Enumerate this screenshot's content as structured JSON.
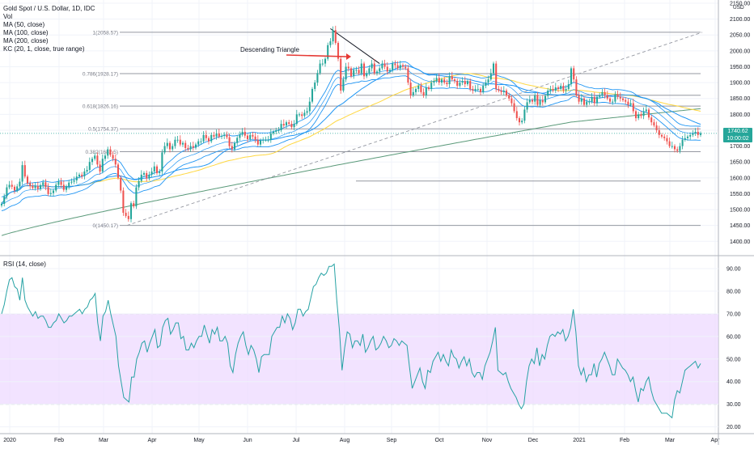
{
  "header": {
    "symbol_line": "Gold Spot / U.S. Dollar, 1D, IDC",
    "indicators": [
      "Vol",
      "MA (50, close)",
      "MA (100, close)",
      "MA (200, close)",
      "KC (20, 1, close, true range)"
    ]
  },
  "annotation": {
    "text": "Descending Triangle"
  },
  "price_tag": {
    "price": "1740.62",
    "countdown": "10:00:02"
  },
  "colors": {
    "up": "#26a69a",
    "down": "#ef5350",
    "ma50": "#2196f3",
    "ma100": "#ffd740",
    "ma200": "#5b9a7a",
    "kc": "#2196f3",
    "rsi": "#26a2a4",
    "rsi_band": "#ecd7ff",
    "grid": "#f0f3fa",
    "fib": "#9598a1"
  },
  "rsi_panel": {
    "title": "RSI (14, close)"
  },
  "chart_data": [
    {
      "type": "line",
      "subtype": "candlestick",
      "title": "Gold Spot / U.S. Dollar, 1D, IDC",
      "y_unit": "USD",
      "yticks": [
        1400,
        1450,
        1500,
        1550,
        1600,
        1650,
        1700,
        1750,
        1800,
        1850,
        1900,
        1950,
        2000,
        2050,
        2100,
        2150
      ],
      "ylim": [
        1360,
        2150
      ],
      "x_labels": [
        "2020",
        "Feb",
        "Mar",
        "Apr",
        "May",
        "Jun",
        "Jul",
        "Aug",
        "Sep",
        "Oct",
        "Nov",
        "Dec",
        "2021",
        "Feb",
        "Mar",
        "Apr"
      ],
      "fib_levels": [
        {
          "label": "1(2058.57)",
          "value": 2058.57
        },
        {
          "label": "0.786(1928.17)",
          "value": 1928.17
        },
        {
          "label": "0.618(1826.16)",
          "value": 1826.16
        },
        {
          "label": "0.5(1754.37)",
          "value": 1754.37
        },
        {
          "label": "0.382(1682.5)",
          "value": 1682.5
        },
        {
          "label": "0(1450.17)",
          "value": 1450.17
        }
      ],
      "extra_levels": [
        1590,
        1860
      ],
      "close": [
        1518,
        1542,
        1570,
        1578,
        1572,
        1560,
        1573,
        1588,
        1640,
        1604,
        1583,
        1574,
        1568,
        1574,
        1565,
        1577,
        1586,
        1571,
        1549,
        1552,
        1560,
        1578,
        1588,
        1578,
        1562,
        1573,
        1585,
        1588,
        1592,
        1604,
        1610,
        1605,
        1620,
        1625,
        1650,
        1660,
        1670,
        1642,
        1620,
        1660,
        1670,
        1690,
        1672,
        1660,
        1642,
        1600,
        1560,
        1490,
        1480,
        1470,
        1520,
        1510,
        1570,
        1590,
        1610,
        1615,
        1598,
        1610,
        1620,
        1636,
        1615,
        1620,
        1680,
        1700,
        1710,
        1690,
        1700,
        1720,
        1720,
        1705,
        1710,
        1694,
        1690,
        1700,
        1695,
        1705,
        1715,
        1715,
        1735,
        1725,
        1715,
        1735,
        1730,
        1740,
        1730,
        1732,
        1736,
        1728,
        1700,
        1690,
        1710,
        1726,
        1736,
        1745,
        1733,
        1722,
        1735,
        1730,
        1720,
        1705,
        1718,
        1720,
        1720,
        1720,
        1740,
        1745,
        1750,
        1750,
        1770,
        1765,
        1775,
        1770,
        1760,
        1770,
        1800,
        1800,
        1795,
        1805,
        1810,
        1840,
        1880,
        1900,
        1930,
        1960,
        1960,
        1975,
        2018,
        2030,
        2065,
        2025,
        1975,
        1875,
        1910,
        1950,
        1945,
        1920,
        1940,
        1940,
        1930,
        1960,
        1920,
        1930,
        1945,
        1960,
        1930,
        1935,
        1945,
        1960,
        1950,
        1935,
        1940,
        1960,
        1955,
        1945,
        1955,
        1950,
        1945,
        1900,
        1860,
        1870,
        1880,
        1890,
        1870,
        1860,
        1885,
        1880,
        1900,
        1905,
        1915,
        1900,
        1910,
        1900,
        1895,
        1920,
        1910,
        1905,
        1890,
        1900,
        1905,
        1895,
        1905,
        1880,
        1875,
        1880,
        1880,
        1870,
        1890,
        1900,
        1910,
        1930,
        1960,
        1880,
        1875,
        1870,
        1875,
        1860,
        1850,
        1835,
        1810,
        1788,
        1775,
        1780,
        1815,
        1838,
        1845,
        1840,
        1860,
        1830,
        1845,
        1838,
        1858,
        1875,
        1880,
        1875,
        1885,
        1880,
        1890,
        1875,
        1880,
        1895,
        1945,
        1910,
        1860,
        1840,
        1850,
        1830,
        1840,
        1840,
        1855,
        1835,
        1855,
        1860,
        1870,
        1860,
        1850,
        1840,
        1840,
        1863,
        1855,
        1850,
        1845,
        1840,
        1830,
        1835,
        1810,
        1788,
        1800,
        1795,
        1810,
        1815,
        1790,
        1775,
        1765,
        1750,
        1735,
        1730,
        1725,
        1715,
        1700,
        1700,
        1690,
        1685,
        1700,
        1720,
        1725,
        1730,
        1735,
        1740,
        1745,
        1735,
        1740
      ]
    },
    {
      "type": "line",
      "title": "RSI (14, close)",
      "yticks": [
        20,
        30,
        40,
        50,
        60,
        70,
        80,
        90
      ],
      "ylim": [
        17,
        95
      ],
      "band": [
        30,
        70
      ],
      "values": [
        70,
        74,
        80,
        85,
        86,
        82,
        81,
        76,
        86,
        76,
        73,
        71,
        69,
        71,
        68,
        69,
        69,
        67,
        64,
        64,
        66,
        67,
        70,
        68,
        66,
        67,
        69,
        69,
        70,
        71,
        72,
        70,
        72,
        73,
        76,
        77,
        79,
        66,
        58,
        69,
        71,
        76,
        70,
        65,
        60,
        47,
        40,
        33,
        32,
        31,
        42,
        42,
        50,
        53,
        57,
        58,
        53,
        57,
        60,
        63,
        55,
        56,
        64,
        67,
        68,
        61,
        63,
        66,
        66,
        59,
        60,
        54,
        54,
        57,
        55,
        58,
        60,
        60,
        65,
        61,
        57,
        63,
        61,
        64,
        58,
        58,
        60,
        57,
        47,
        44,
        52,
        57,
        60,
        62,
        56,
        52,
        56,
        54,
        50,
        44,
        51,
        52,
        52,
        52,
        60,
        62,
        64,
        64,
        69,
        66,
        70,
        68,
        63,
        66,
        72,
        72,
        69,
        71,
        72,
        77,
        82,
        83,
        86,
        88,
        87,
        88,
        91,
        91,
        92,
        76,
        63,
        45,
        55,
        62,
        61,
        55,
        58,
        58,
        56,
        61,
        53,
        55,
        58,
        60,
        54,
        55,
        57,
        60,
        58,
        55,
        56,
        59,
        58,
        56,
        58,
        57,
        56,
        46,
        37,
        40,
        43,
        46,
        40,
        37,
        45,
        44,
        49,
        51,
        53,
        49,
        52,
        49,
        47,
        54,
        51,
        50,
        46,
        49,
        51,
        47,
        50,
        44,
        42,
        44,
        44,
        41,
        47,
        50,
        53,
        58,
        64,
        45,
        44,
        43,
        44,
        40,
        37,
        35,
        33,
        30,
        28,
        30,
        40,
        47,
        50,
        48,
        55,
        47,
        52,
        50,
        56,
        60,
        61,
        60,
        62,
        61,
        63,
        58,
        60,
        64,
        72,
        62,
        47,
        43,
        46,
        40,
        43,
        43,
        48,
        42,
        48,
        50,
        53,
        50,
        47,
        43,
        43,
        50,
        48,
        46,
        45,
        43,
        40,
        42,
        36,
        31,
        37,
        36,
        40,
        42,
        36,
        32,
        30,
        28,
        26,
        26,
        26,
        25,
        24,
        32,
        36,
        35,
        40,
        45,
        46,
        47,
        48,
        49,
        46,
        48
      ]
    }
  ]
}
